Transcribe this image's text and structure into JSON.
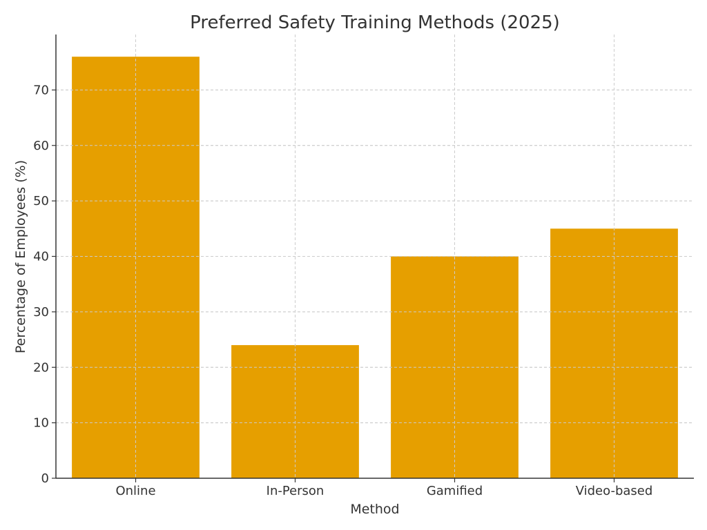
{
  "chart_data": {
    "type": "bar",
    "title": "Preferred Safety Training Methods (2025)",
    "xlabel": "Method",
    "ylabel": "Percentage of Employees (%)",
    "categories": [
      "Online",
      "In-Person",
      "Gamified",
      "Video-based"
    ],
    "values": [
      76,
      24,
      40,
      45
    ],
    "ylim": [
      0,
      80
    ],
    "yticks": [
      0,
      10,
      20,
      30,
      40,
      50,
      60,
      70
    ],
    "grid": true,
    "bar_color": "#E69F00"
  }
}
